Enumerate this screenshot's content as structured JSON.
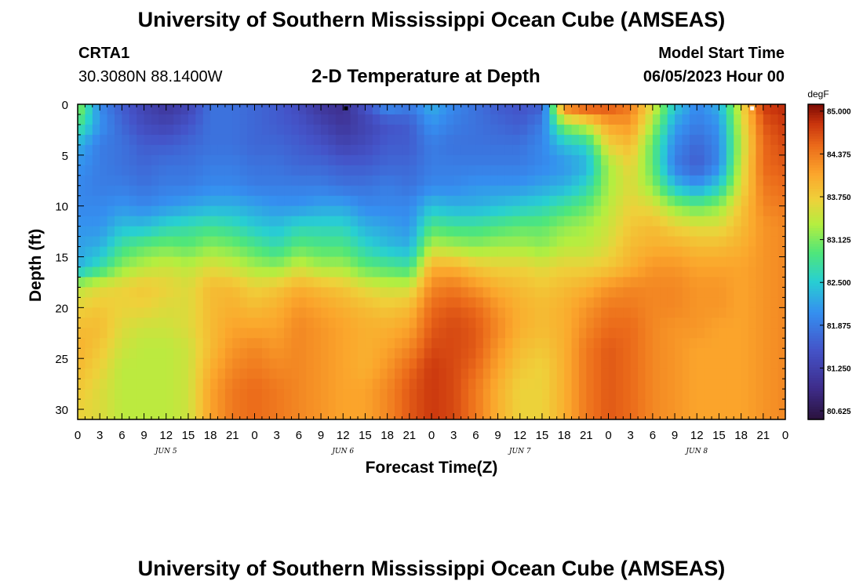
{
  "header": {
    "title": "University of Southern Mississippi Ocean Cube (AMSEAS)",
    "footer_title": "University of Southern Mississippi Ocean Cube (AMSEAS)",
    "station_id": "CRTA1",
    "station_coords": "30.3080N  88.1400W",
    "plot_title": "2-D Temperature at Depth",
    "model_start_label": "Model Start Time",
    "model_start_value": "06/05/2023 Hour 00"
  },
  "chart_data": {
    "type": "heatmap",
    "title": "2-D Temperature at Depth",
    "xlabel": "Forecast Time(Z)",
    "ylabel": "Depth (ft)",
    "xlim": [
      0,
      96
    ],
    "ylim": [
      31,
      0
    ],
    "x_ticks": [
      0,
      3,
      6,
      9,
      12,
      15,
      18,
      21,
      24,
      27,
      30,
      33,
      36,
      39,
      42,
      45,
      48,
      51,
      54,
      57,
      60,
      63,
      66,
      69,
      72,
      75,
      78,
      81,
      84,
      87,
      90,
      93,
      96
    ],
    "x_tick_labels": [
      "0",
      "3",
      "6",
      "9",
      "12",
      "15",
      "18",
      "21",
      "0",
      "3",
      "6",
      "9",
      "12",
      "15",
      "18",
      "21",
      "0",
      "3",
      "6",
      "9",
      "12",
      "15",
      "18",
      "21",
      "0",
      "3",
      "6",
      "9",
      "12",
      "15",
      "18",
      "21",
      "0"
    ],
    "y_ticks": [
      0,
      5,
      10,
      15,
      20,
      25,
      30
    ],
    "y_tick_labels": [
      "0",
      "5",
      "10",
      "15",
      "20",
      "25",
      "30"
    ],
    "day_labels": [
      {
        "text": "JUN 5",
        "hour": 12
      },
      {
        "text": "JUN 6",
        "hour": 36
      },
      {
        "text": "JUN 7",
        "hour": 60
      },
      {
        "text": "JUN 8",
        "hour": 84
      }
    ],
    "colorbar": {
      "unit": "degF",
      "min": 80.5,
      "max": 85.1,
      "tick_values": [
        80.625,
        81.25,
        81.875,
        82.5,
        83.125,
        83.75,
        84.375,
        85.0
      ],
      "tick_labels": [
        "80.625",
        "81.250",
        "81.875",
        "82.500",
        "83.125",
        "83.750",
        "84.375",
        "85.000"
      ]
    },
    "grid_hours": [
      0,
      3,
      6,
      9,
      12,
      15,
      18,
      21,
      24,
      27,
      30,
      33,
      36,
      39,
      42,
      45,
      48,
      51,
      54,
      57,
      60,
      63,
      66,
      69,
      72,
      75,
      78,
      81,
      84,
      87,
      90,
      93,
      96
    ],
    "grid_depths": [
      0,
      2,
      4,
      6,
      8,
      10,
      12,
      14,
      16,
      18,
      20,
      22,
      24,
      26,
      28,
      30,
      31
    ],
    "temperatures": [
      [
        83.3,
        82.0,
        81.6,
        81.3,
        81.1,
        81.3,
        81.8,
        81.8,
        81.7,
        81.6,
        81.4,
        81.1,
        81.0,
        81.5,
        82.1,
        81.9,
        82.3,
        82.0,
        81.8,
        81.6,
        81.5,
        81.6,
        84.5,
        84.8,
        84.7,
        84.4,
        83.6,
        82.5,
        82.0,
        82.3,
        83.6,
        84.8,
        84.9
      ],
      [
        82.9,
        82.1,
        81.7,
        81.4,
        81.3,
        81.5,
        81.8,
        81.8,
        81.7,
        81.6,
        81.5,
        81.3,
        81.1,
        81.3,
        81.5,
        81.6,
        82.1,
        81.9,
        81.8,
        81.7,
        81.6,
        81.9,
        83.2,
        83.5,
        84.1,
        84.2,
        83.3,
        82.2,
        81.9,
        82.1,
        83.5,
        84.6,
        84.8
      ],
      [
        82.3,
        81.9,
        81.8,
        81.6,
        81.6,
        81.7,
        81.8,
        81.8,
        81.7,
        81.7,
        81.6,
        81.5,
        81.3,
        81.4,
        81.6,
        81.6,
        81.9,
        81.8,
        81.8,
        81.8,
        81.8,
        82.0,
        82.4,
        82.6,
        83.7,
        83.9,
        83.0,
        82.0,
        81.7,
        82.0,
        83.4,
        84.5,
        84.7
      ],
      [
        82.1,
        81.9,
        81.8,
        81.7,
        81.8,
        81.8,
        81.9,
        81.9,
        81.8,
        81.8,
        81.7,
        81.7,
        81.6,
        81.6,
        81.7,
        81.7,
        81.9,
        81.9,
        81.9,
        81.9,
        81.9,
        82.0,
        82.1,
        82.3,
        83.3,
        83.7,
        83.0,
        81.9,
        81.6,
        82.0,
        83.5,
        84.5,
        84.6
      ],
      [
        82.0,
        81.9,
        81.9,
        81.8,
        81.9,
        81.9,
        82.0,
        82.0,
        81.9,
        81.9,
        81.9,
        81.9,
        81.8,
        81.8,
        81.9,
        81.8,
        82.0,
        82.0,
        82.1,
        82.1,
        82.1,
        82.2,
        82.3,
        82.6,
        83.3,
        83.6,
        83.2,
        82.4,
        82.1,
        82.5,
        83.6,
        84.4,
        84.5
      ],
      [
        82.0,
        82.0,
        82.1,
        82.0,
        82.1,
        82.2,
        82.3,
        82.3,
        82.2,
        82.1,
        82.1,
        82.2,
        82.2,
        82.0,
        82.0,
        82.0,
        82.4,
        82.3,
        82.3,
        82.4,
        82.5,
        82.6,
        82.8,
        83.0,
        83.4,
        83.7,
        83.6,
        83.2,
        83.0,
        83.2,
        83.8,
        84.3,
        84.4
      ],
      [
        82.1,
        82.1,
        82.4,
        82.4,
        82.6,
        82.7,
        82.8,
        82.7,
        82.5,
        82.4,
        82.6,
        82.6,
        82.6,
        82.3,
        82.2,
        82.1,
        82.9,
        82.8,
        82.8,
        82.9,
        83.0,
        83.0,
        83.2,
        83.3,
        83.5,
        83.8,
        83.9,
        83.7,
        83.6,
        83.6,
        83.9,
        84.2,
        84.3
      ],
      [
        82.2,
        82.3,
        82.8,
        83.0,
        83.1,
        83.0,
        83.2,
        83.1,
        82.9,
        82.7,
        83.0,
        82.9,
        82.9,
        82.6,
        82.4,
        82.3,
        83.4,
        83.3,
        83.2,
        83.3,
        83.3,
        83.2,
        83.4,
        83.4,
        83.6,
        83.9,
        84.0,
        84.0,
        83.9,
        83.9,
        84.0,
        84.2,
        84.3
      ],
      [
        82.3,
        82.7,
        83.2,
        83.4,
        83.5,
        83.4,
        83.6,
        83.5,
        83.3,
        83.2,
        83.5,
        83.3,
        83.3,
        83.0,
        82.9,
        82.8,
        84.0,
        84.0,
        83.8,
        83.7,
        83.7,
        83.6,
        83.7,
        83.7,
        83.8,
        84.0,
        84.2,
        84.2,
        84.1,
        84.1,
        84.1,
        84.2,
        84.3
      ],
      [
        83.4,
        83.6,
        83.7,
        83.8,
        83.7,
        83.6,
        83.9,
        83.9,
        83.7,
        83.8,
        84.0,
        83.9,
        83.8,
        83.6,
        83.5,
        83.5,
        84.3,
        84.4,
        84.2,
        84.0,
        83.9,
        83.8,
        83.9,
        84.0,
        84.2,
        84.3,
        84.3,
        84.3,
        84.2,
        84.2,
        84.1,
        84.2,
        84.3
      ],
      [
        83.7,
        83.8,
        83.7,
        83.7,
        83.6,
        83.6,
        83.9,
        84.0,
        83.9,
        84.0,
        84.2,
        84.1,
        84.0,
        83.9,
        83.8,
        83.9,
        84.5,
        84.6,
        84.5,
        84.2,
        84.0,
        83.9,
        84.0,
        84.2,
        84.4,
        84.4,
        84.3,
        84.3,
        84.2,
        84.2,
        84.1,
        84.2,
        84.3
      ],
      [
        83.9,
        83.9,
        83.6,
        83.5,
        83.5,
        83.6,
        83.9,
        84.1,
        84.1,
        84.1,
        84.3,
        84.2,
        84.1,
        84.0,
        84.0,
        84.1,
        84.6,
        84.7,
        84.6,
        84.3,
        84.0,
        83.9,
        84.0,
        84.3,
        84.5,
        84.5,
        84.3,
        84.2,
        84.2,
        84.1,
        84.1,
        84.2,
        84.3
      ],
      [
        84.0,
        83.8,
        83.5,
        83.4,
        83.4,
        83.5,
        83.9,
        84.2,
        84.3,
        84.2,
        84.3,
        84.2,
        84.1,
        84.0,
        84.1,
        84.3,
        84.7,
        84.7,
        84.6,
        84.2,
        83.9,
        83.8,
        84.0,
        84.4,
        84.6,
        84.5,
        84.3,
        84.2,
        84.1,
        84.1,
        84.1,
        84.2,
        84.3
      ],
      [
        83.9,
        83.7,
        83.4,
        83.4,
        83.4,
        83.5,
        84.0,
        84.3,
        84.4,
        84.3,
        84.3,
        84.2,
        84.1,
        84.0,
        84.2,
        84.5,
        84.8,
        84.7,
        84.5,
        84.1,
        83.8,
        83.7,
        84.0,
        84.4,
        84.6,
        84.5,
        84.3,
        84.2,
        84.1,
        84.1,
        84.1,
        84.2,
        84.3
      ],
      [
        83.8,
        83.6,
        83.4,
        83.4,
        83.4,
        83.5,
        84.1,
        84.4,
        84.5,
        84.4,
        84.3,
        84.2,
        84.1,
        84.1,
        84.3,
        84.6,
        84.8,
        84.7,
        84.4,
        84.0,
        83.7,
        83.7,
        84.0,
        84.4,
        84.6,
        84.5,
        84.3,
        84.2,
        84.1,
        84.1,
        84.1,
        84.2,
        84.3
      ],
      [
        83.7,
        83.6,
        83.4,
        83.4,
        83.4,
        83.5,
        84.1,
        84.4,
        84.5,
        84.4,
        84.3,
        84.2,
        84.1,
        84.1,
        84.3,
        84.6,
        84.8,
        84.7,
        84.4,
        84.0,
        83.7,
        83.7,
        84.0,
        84.4,
        84.6,
        84.5,
        84.3,
        84.2,
        84.1,
        84.1,
        84.1,
        84.2,
        84.3
      ],
      [
        83.7,
        83.6,
        83.4,
        83.4,
        83.4,
        83.5,
        84.1,
        84.4,
        84.5,
        84.4,
        84.3,
        84.2,
        84.1,
        84.1,
        84.3,
        84.6,
        84.8,
        84.7,
        84.4,
        84.0,
        83.7,
        83.7,
        84.0,
        84.4,
        84.6,
        84.5,
        84.3,
        84.2,
        84.1,
        84.1,
        84.1,
        84.2,
        84.3
      ]
    ],
    "markers": [
      {
        "hour": 36.4,
        "depth": 0.2,
        "color": "#000000"
      },
      {
        "hour": 91.5,
        "depth": 0.2,
        "color": "#ffffff"
      }
    ]
  },
  "colors": {
    "frame": "#000000",
    "background": "#ffffff"
  }
}
